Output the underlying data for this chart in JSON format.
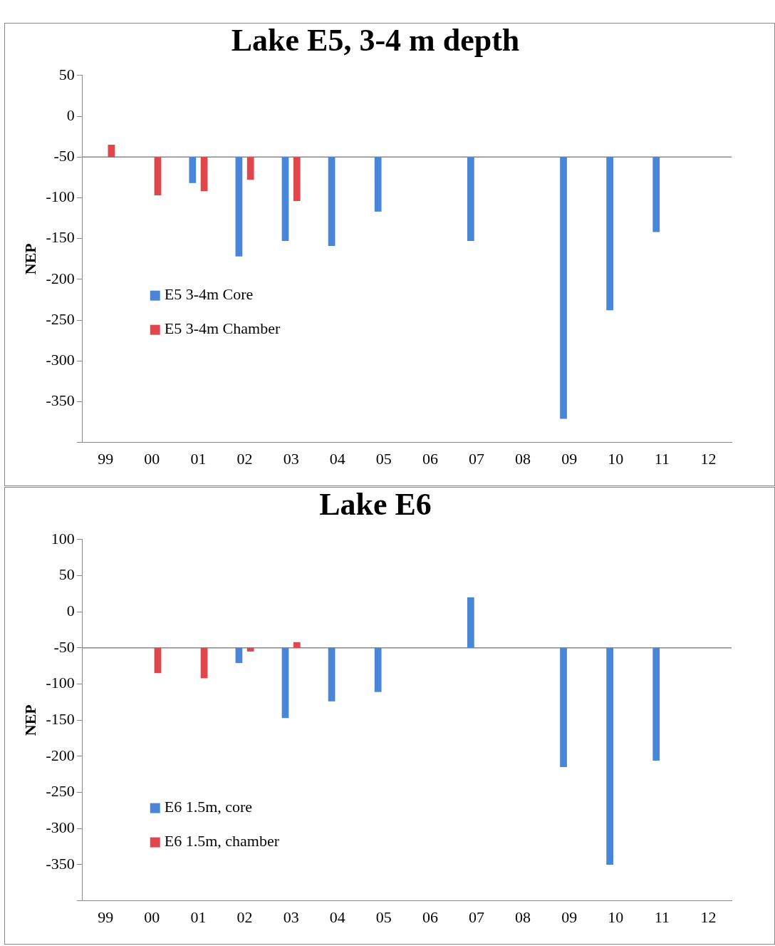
{
  "chart_data": [
    {
      "type": "bar",
      "title": "Lake E5, 3-4 m depth",
      "ylabel": "NEP",
      "categories": [
        "99",
        "00",
        "01",
        "02",
        "03",
        "04",
        "05",
        "06",
        "07",
        "08",
        "09",
        "10",
        "11",
        "12"
      ],
      "series": [
        {
          "name": "E5 3-4m Core",
          "color": "#4a86d8",
          "base": [
            null,
            null,
            -50,
            -50,
            -50,
            -50,
            -50,
            null,
            -50,
            null,
            -50,
            -50,
            -50,
            null
          ],
          "values": [
            null,
            null,
            -32,
            -122,
            -103,
            -109,
            -67,
            null,
            -103,
            null,
            -321,
            -188,
            -92,
            null
          ]
        },
        {
          "name": "E5 3-4m Chamber",
          "color": "#e0474c",
          "base": [
            -50,
            -50,
            -50,
            -50,
            -50,
            null,
            null,
            null,
            null,
            null,
            null,
            null,
            null,
            null
          ],
          "values": [
            15,
            -47,
            -42,
            -28,
            -54,
            null,
            null,
            null,
            null,
            null,
            null,
            null,
            null,
            null
          ]
        }
      ],
      "ylim": [
        -400,
        50
      ],
      "yticks": [
        50,
        0,
        -50,
        -100,
        -150,
        -200,
        -250,
        -300,
        -350,
        {
          "value": -400,
          "label": null
        }
      ],
      "grid": false,
      "legend": "left",
      "ref_lines": [
        {
          "axis": "y",
          "value": -50
        }
      ]
    },
    {
      "type": "bar",
      "title": "Lake E6",
      "ylabel": "NEP",
      "categories": [
        "99",
        "00",
        "01",
        "02",
        "03",
        "04",
        "05",
        "06",
        "07",
        "08",
        "09",
        "10",
        "11",
        "12"
      ],
      "series": [
        {
          "name": "E6 1.5m, core",
          "color": "#4a86d8",
          "base": [
            null,
            null,
            null,
            -50,
            -50,
            -50,
            -50,
            null,
            -50,
            null,
            -50,
            -50,
            -50,
            null
          ],
          "values": [
            null,
            null,
            null,
            -21,
            -97,
            -74,
            -61,
            null,
            70,
            null,
            -165,
            -300,
            -156,
            null
          ]
        },
        {
          "name": "E6 1.5m, chamber",
          "color": "#e0474c",
          "base": [
            null,
            -50,
            -50,
            -50,
            -50,
            null,
            null,
            null,
            null,
            null,
            null,
            null,
            null,
            null
          ],
          "values": [
            null,
            -35,
            -42,
            -5,
            8,
            null,
            null,
            null,
            null,
            null,
            null,
            null,
            null,
            null
          ]
        }
      ],
      "ylim": [
        -400,
        100
      ],
      "yticks": [
        100,
        50,
        0,
        -50,
        -100,
        -150,
        -200,
        -250,
        -300,
        -350,
        {
          "value": -400,
          "label": null
        }
      ],
      "grid": false,
      "legend": "bottom left",
      "ref_lines": [
        {
          "axis": "y",
          "value": -50
        }
      ]
    }
  ]
}
